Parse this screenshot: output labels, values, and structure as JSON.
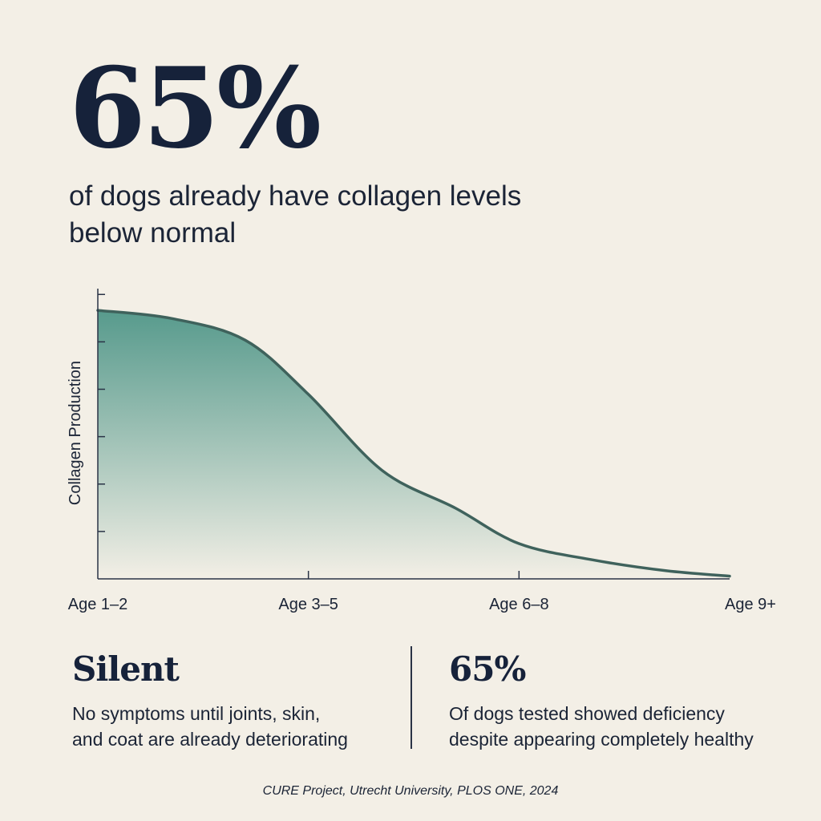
{
  "hero": {
    "stat": "65%",
    "caption": "of dogs already have collagen levels below normal"
  },
  "chart_data": {
    "type": "area",
    "title": "",
    "xlabel": "",
    "ylabel": "Collagen Production",
    "categories": [
      "Age 1–2",
      "Age 3–5",
      "Age 6–8",
      "Age 9+"
    ],
    "curve": [
      {
        "x": 0.0,
        "y": 0.99
      },
      {
        "x": 0.35,
        "y": 0.96
      },
      {
        "x": 0.7,
        "y": 0.88
      },
      {
        "x": 1.0,
        "y": 0.68
      },
      {
        "x": 1.35,
        "y": 0.4
      },
      {
        "x": 1.7,
        "y": 0.26
      },
      {
        "x": 2.0,
        "y": 0.13
      },
      {
        "x": 2.35,
        "y": 0.07
      },
      {
        "x": 2.7,
        "y": 0.03
      },
      {
        "x": 3.0,
        "y": 0.01
      }
    ],
    "xlim": [
      0,
      3
    ],
    "ylim": [
      0,
      1.07
    ],
    "grid": false,
    "colors": {
      "line": "#3f625c",
      "fill_top": "#4f9688",
      "fill_bottom": "#f3efe6",
      "axis": "#2a3346"
    }
  },
  "stats": [
    {
      "title": "Silent",
      "description_lines": [
        "No symptoms until joints, skin,",
        "and coat are already deteriorating"
      ]
    },
    {
      "title": "65%",
      "description_lines": [
        "Of dogs tested showed deficiency",
        "despite appearing completely healthy"
      ]
    }
  ],
  "source": "CURE Project, Utrecht University, PLOS ONE, 2024"
}
